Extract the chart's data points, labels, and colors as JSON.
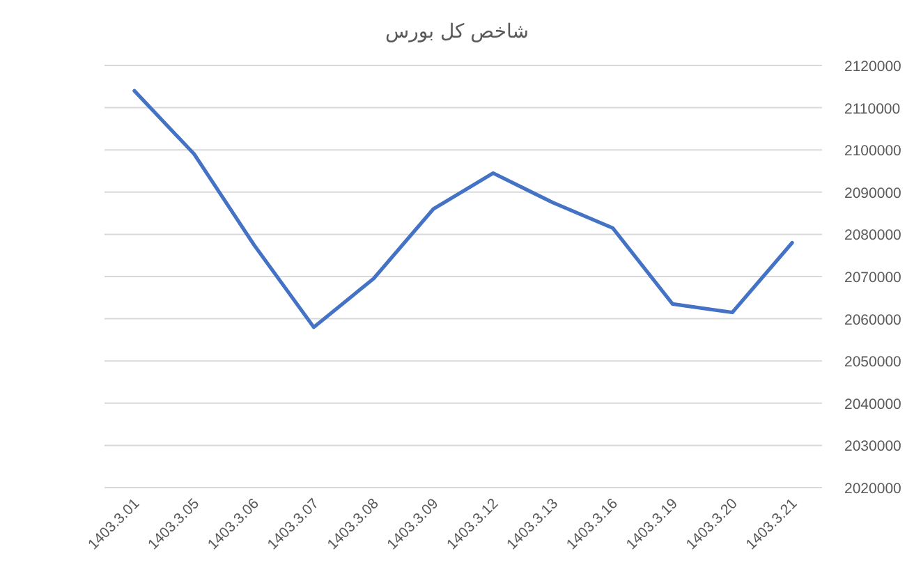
{
  "chart_data": {
    "type": "line",
    "title": "شاخص کل بورس",
    "categories": [
      "1403.3.01",
      "1403.3.05",
      "1403.3.06",
      "1403.3.07",
      "1403.3.08",
      "1403.3.09",
      "1403.3.12",
      "1403.3.13",
      "1403.3.16",
      "1403.3.19",
      "1403.3.20",
      "1403.3.21"
    ],
    "series": [
      {
        "color": "#4472c4",
        "values": [
          2114000,
          2099000,
          2077500,
          2058000,
          2069500,
          2086000,
          2094500,
          2087500,
          2081500,
          2063500,
          2061500,
          2078000
        ]
      }
    ],
    "ylim": [
      2020000,
      2120000
    ],
    "yticks": [
      2020000,
      2030000,
      2040000,
      2050000,
      2060000,
      2070000,
      2080000,
      2090000,
      2100000,
      2110000,
      2120000
    ],
    "grid": "y",
    "marker": "none",
    "line_style": "solid"
  }
}
